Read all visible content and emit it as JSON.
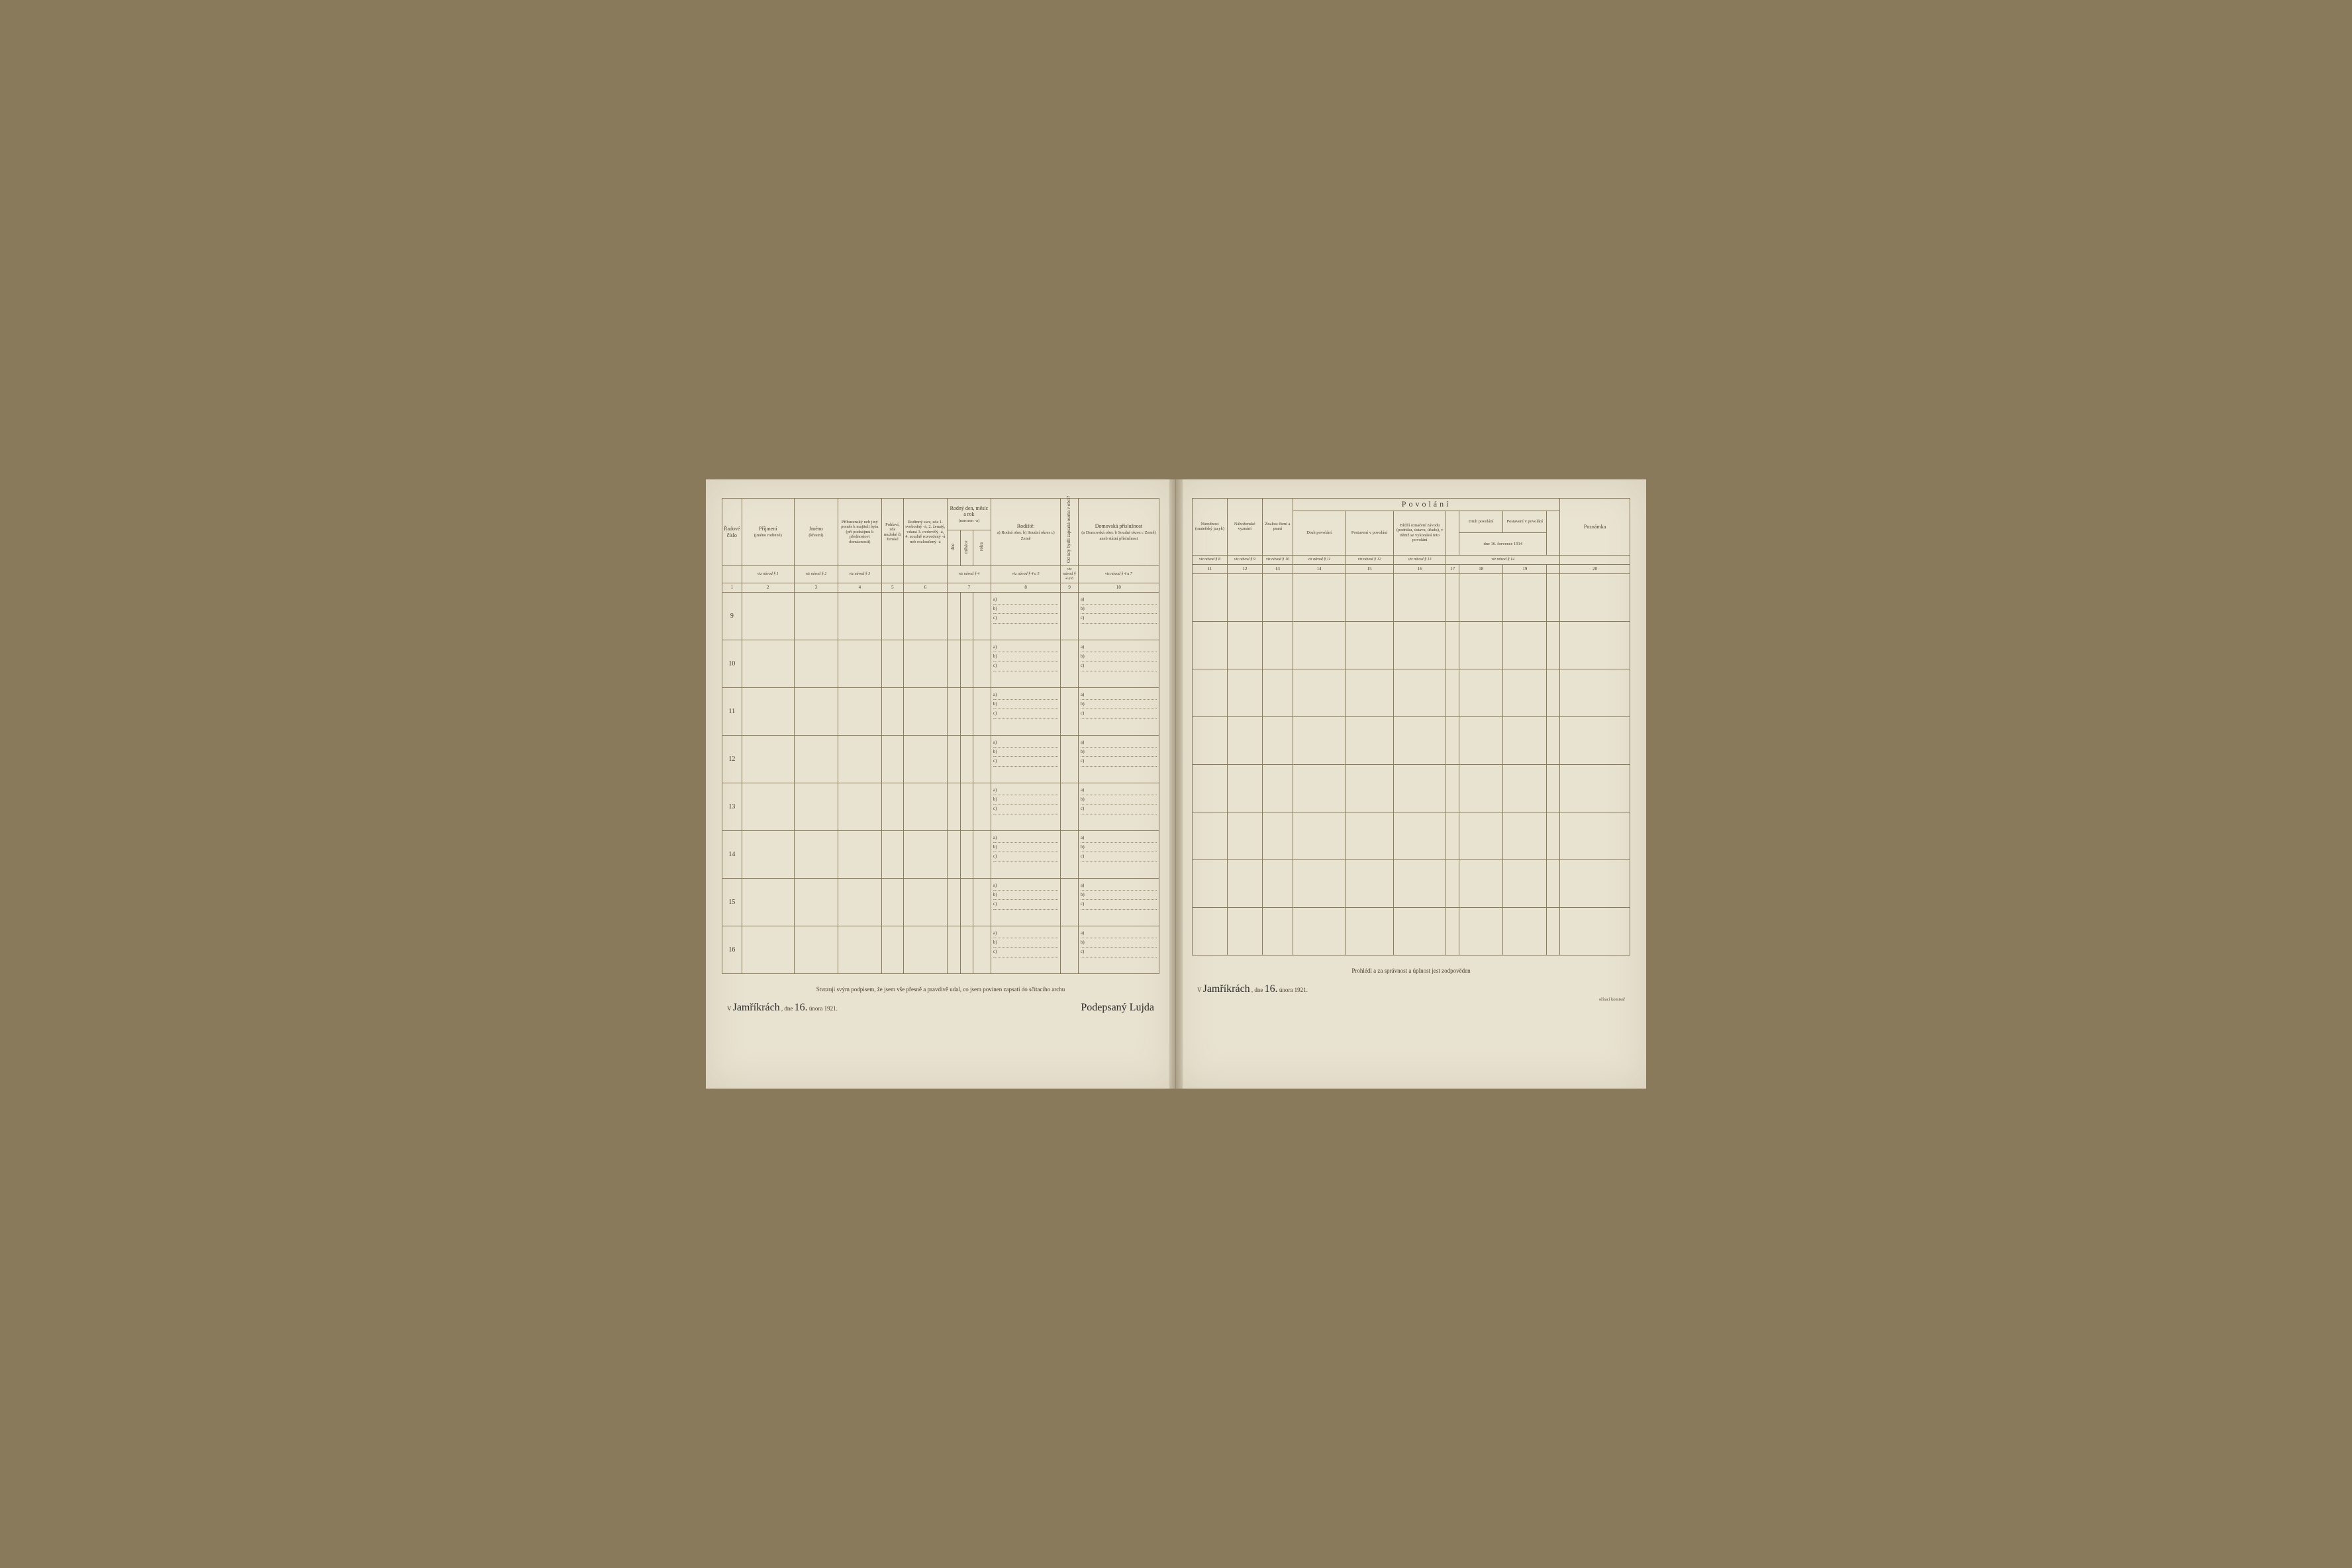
{
  "left": {
    "headers": {
      "c1": "Řadové\nčíslo",
      "c2a": "Příjmení",
      "c2b": "(jméno rodinné)",
      "c3a": "Jméno",
      "c3b": "(křestní)",
      "c4": "Příbuzenský neb jiný poměr k majiteli bytu (při podnájmu k přednostovi domácnosti)",
      "c5": "Pohlaví, zda mužské či ženské",
      "c6": "Rodinný stav, zda 1. svobodný -á, 2. ženatý, vdaná 3. ovdovělý -á, 4. soudně rozvedený -á neb rozloučený -á",
      "c7top": "Rodný den, měsíc a rok",
      "c7sub": "(narozen -a)",
      "c7a": "dne",
      "c7b": "měsíce",
      "c7c": "roku",
      "c8top": "Rodiště:",
      "c8body": "a) Rodná obec\nb) Soudní okres\nc) Země",
      "c9": "Od kdy bydlí zapsaná osoba v obci?",
      "c10top": "Domovská příslušnost",
      "c10body": "(a Domovská obec\nb Soudní okres\nc Země)\naneb\nstátní příslušnost"
    },
    "refs": {
      "r2": "viz návod § 1",
      "r3": "viz návod § 2",
      "r4": "viz návod § 3",
      "r7": "viz návod § 4",
      "r8": "viz návod § 4 a 5",
      "r9": "viz návod § 4 a 6",
      "r10": "viz návod § 4 a 7"
    },
    "colnums": [
      "1",
      "2",
      "3",
      "4",
      "5",
      "6",
      "7",
      "8",
      "9",
      "10"
    ],
    "rows": [
      "9",
      "10",
      "11",
      "12",
      "13",
      "14",
      "15",
      "16"
    ],
    "footer": "Stvrzuji svým podpisem, že jsem vše přesně a pravdivě udal, co jsem povinen zapsati do sčítacího archu",
    "sig_place": "Jamříkrách",
    "sig_date_pre": ", dne",
    "sig_date_day": "16.",
    "sig_date_rest": "února 1921.",
    "sig_right": "Podepsaný Lujda"
  },
  "right": {
    "section": "Povolání",
    "headers": {
      "c11": "Národnost (mateřský jazyk)",
      "c12": "Náboženské vyznání",
      "c13": "Znalost čtení a psaní",
      "c14": "Druh povolání",
      "c15": "Postavení v povolání",
      "c16": "Bližší označení závodu (podniku, ústavu, úřadu), v němž se vykonává toto povolání",
      "c17a": "Druh povolání",
      "c17b": "Postavení v povolání",
      "c17date": "dne 16. července 1914",
      "c20": "Poznámka"
    },
    "refs": {
      "r11": "viz návod § 8",
      "r12": "viz návod § 9",
      "r13": "viz návod § 10",
      "r14": "viz návod § 11",
      "r15": "viz návod § 12",
      "r16": "viz návod § 13",
      "r17": "viz návod § 14"
    },
    "colnums": [
      "11",
      "12",
      "13",
      "14",
      "15",
      "16",
      "17",
      "18",
      "19",
      "20"
    ],
    "footer": "Prohlédl a za správnost a úplnost jest zodpověden",
    "sig_place": "Jamříkrách",
    "sig_date_pre": ", dne",
    "sig_date_day": "16.",
    "sig_date_rest": "února 1921.",
    "sig_right": "sčítací komisař"
  },
  "abc": {
    "a": "a)",
    "b": "b)",
    "c": "c)"
  },
  "v_prefix": "V"
}
